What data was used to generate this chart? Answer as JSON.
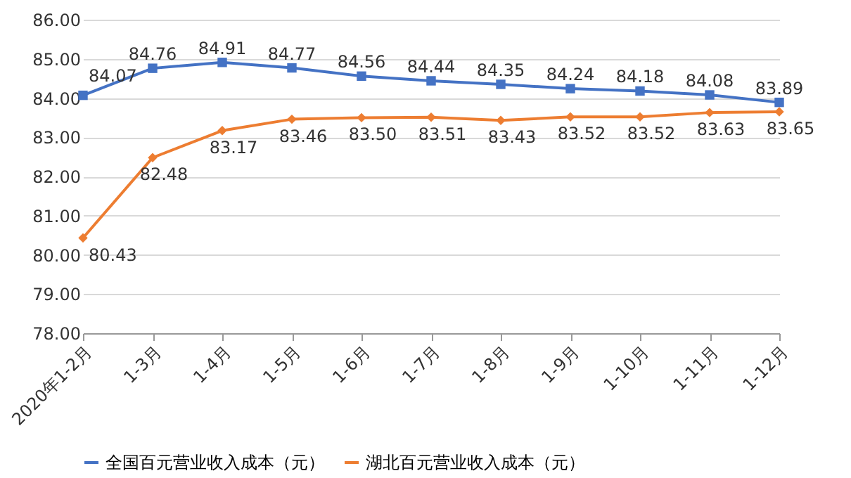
{
  "chart_data": {
    "type": "line",
    "categories": [
      "2020年1-2月",
      "1-3月",
      "1-4月",
      "1-5月",
      "1-6月",
      "1-7月",
      "1-8月",
      "1-9月",
      "1-10月",
      "1-11月",
      "1-12月"
    ],
    "series": [
      {
        "name": "全国百元营业收入成本（元）",
        "color": "#4472c4",
        "marker": "square",
        "values": [
          84.07,
          84.76,
          84.91,
          84.77,
          84.56,
          84.44,
          84.35,
          84.24,
          84.18,
          84.08,
          83.89
        ],
        "value_labels": [
          "84.07",
          "84.76",
          "84.91",
          "84.77",
          "84.56",
          "84.44",
          "84.35",
          "84.24",
          "84.18",
          "84.08",
          "83.89"
        ]
      },
      {
        "name": "湖北百元营业收入成本（元）",
        "color": "#ed7d31",
        "marker": "diamond",
        "values": [
          80.43,
          82.48,
          83.17,
          83.46,
          83.5,
          83.51,
          83.43,
          83.52,
          83.52,
          83.63,
          83.65
        ],
        "value_labels": [
          "80.43",
          "82.48",
          "83.17",
          "83.46",
          "83.50",
          "83.51",
          "83.43",
          "83.52",
          "83.52",
          "83.63",
          "83.65"
        ]
      }
    ],
    "ylim": [
      78,
      86
    ],
    "yticks": [
      {
        "value": 78,
        "label": "78.00"
      },
      {
        "value": 79,
        "label": "79.00"
      },
      {
        "value": 80,
        "label": "80.00"
      },
      {
        "value": 81,
        "label": "81.00"
      },
      {
        "value": 82,
        "label": "82.00"
      },
      {
        "value": 83,
        "label": "83.00"
      },
      {
        "value": 84,
        "label": "84.00"
      },
      {
        "value": 85,
        "label": "85.00"
      },
      {
        "value": 86,
        "label": "86.00"
      }
    ],
    "grid": "y",
    "legend": "bottom",
    "line_style": "solid"
  }
}
